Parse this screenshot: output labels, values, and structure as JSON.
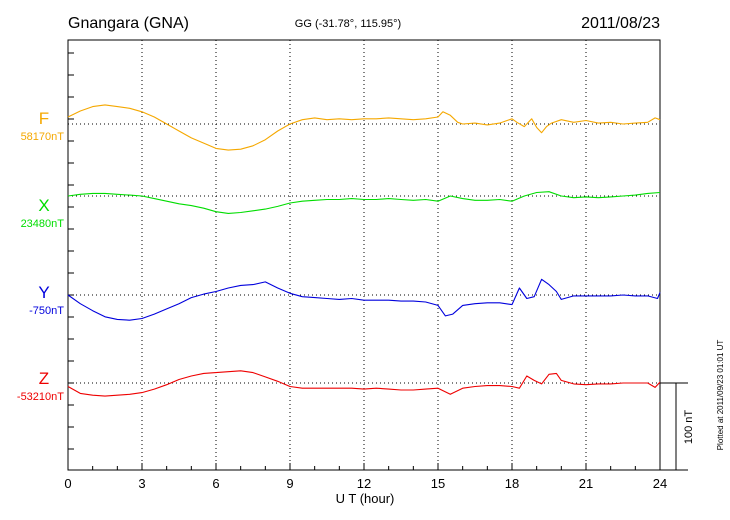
{
  "header": {
    "station": "Gnangara (GNA)",
    "coords": "GG (-31.78°, 115.95°)",
    "date": "2011/08/23"
  },
  "side_note": "Plotted at 2011/09/23 01:01 UT",
  "scale_label": "100 nT",
  "chart_data": {
    "type": "line",
    "xlabel": "U T (hour)",
    "xlim": [
      0,
      24
    ],
    "xticks": [
      "0",
      "3",
      "6",
      "9",
      "12",
      "15",
      "18",
      "21",
      "24"
    ],
    "scale_nT": 100,
    "series": [
      {
        "name": "F",
        "baseline_label": "58170nT",
        "color": "#f5a800",
        "x": [
          0,
          0.5,
          1,
          1.5,
          2,
          2.5,
          3,
          3.5,
          4,
          4.5,
          5,
          5.5,
          6,
          6.5,
          7,
          7.5,
          8,
          8.5,
          9,
          9.5,
          10,
          10.5,
          11,
          11.5,
          12,
          12.5,
          13,
          13.5,
          14,
          14.5,
          15,
          15.2,
          15.5,
          15.8,
          16,
          16.5,
          17,
          17.5,
          18,
          18.2,
          18.5,
          18.8,
          19,
          19.2,
          19.4,
          19.6,
          20,
          20.5,
          21,
          21.5,
          22,
          22.5,
          23,
          23.5,
          23.8,
          24
        ],
        "values": [
          8,
          15,
          20,
          22,
          20,
          18,
          14,
          8,
          0,
          -8,
          -16,
          -22,
          -28,
          -30,
          -29,
          -25,
          -18,
          -8,
          0,
          5,
          7,
          5,
          6,
          5,
          6,
          6,
          7,
          6,
          5,
          6,
          8,
          14,
          10,
          2,
          0,
          1,
          -1,
          1,
          6,
          2,
          -3,
          6,
          -4,
          -10,
          -3,
          1,
          5,
          2,
          4,
          1,
          2,
          0,
          1,
          2,
          7,
          5
        ]
      },
      {
        "name": "X",
        "baseline_label": "23480nT",
        "color": "#00dd00",
        "x": [
          0,
          0.5,
          1,
          1.5,
          2,
          2.5,
          3,
          3.5,
          4,
          4.5,
          5,
          5.5,
          6,
          6.5,
          7,
          7.5,
          8,
          8.5,
          9,
          9.5,
          10,
          10.5,
          11,
          11.5,
          12,
          12.5,
          13,
          13.5,
          14,
          14.5,
          15,
          15.5,
          16,
          16.5,
          17,
          17.5,
          18,
          18.5,
          19,
          19.5,
          20,
          20.5,
          21,
          21.5,
          22,
          22.5,
          23,
          23.5,
          24
        ],
        "values": [
          0,
          2,
          3,
          3,
          2,
          1,
          0,
          -3,
          -6,
          -9,
          -11,
          -14,
          -18,
          -20,
          -19,
          -17,
          -15,
          -12,
          -8,
          -6,
          -5,
          -4,
          -4,
          -3,
          -4,
          -4,
          -3,
          -4,
          -5,
          -4,
          -6,
          0,
          -3,
          -5,
          -5,
          -4,
          -6,
          0,
          4,
          5,
          0,
          -2,
          -1,
          -2,
          -1,
          0,
          1,
          3,
          4
        ]
      },
      {
        "name": "Y",
        "baseline_label": "-750nT",
        "color": "#0000dd",
        "x": [
          0,
          0.5,
          1,
          1.5,
          2,
          2.5,
          3,
          3.5,
          4,
          4.5,
          5,
          5.5,
          6,
          6.5,
          7,
          7.5,
          8,
          8.5,
          9,
          9.5,
          10,
          10.5,
          11,
          11.5,
          12,
          12.5,
          13,
          13.5,
          14,
          14.5,
          15,
          15.3,
          15.6,
          16,
          16.5,
          17,
          17.5,
          18,
          18.3,
          18.6,
          18.9,
          19.2,
          19.5,
          19.8,
          20,
          20.5,
          21,
          21.5,
          22,
          22.5,
          23,
          23.5,
          23.9,
          24
        ],
        "values": [
          0,
          -10,
          -18,
          -25,
          -28,
          -29,
          -27,
          -22,
          -16,
          -10,
          -3,
          1,
          4,
          8,
          11,
          12,
          15,
          8,
          2,
          -2,
          -3,
          -4,
          -5,
          -4,
          -6,
          -6,
          -6,
          -7,
          -7,
          -8,
          -12,
          -24,
          -22,
          -12,
          -10,
          -9,
          -9,
          -11,
          8,
          -4,
          -2,
          18,
          12,
          4,
          -5,
          -1,
          -1,
          -1,
          -1,
          0,
          -1,
          -1,
          -4,
          3
        ]
      },
      {
        "name": "Z",
        "baseline_label": "-53210nT",
        "color": "#ee0000",
        "x": [
          0,
          0.5,
          1,
          1.5,
          2,
          2.5,
          3,
          3.5,
          4,
          4.5,
          5,
          5.5,
          6,
          6.5,
          7,
          7.5,
          8,
          8.5,
          9,
          9.5,
          10,
          10.5,
          11,
          11.5,
          12,
          12.5,
          13,
          13.5,
          14,
          14.5,
          15,
          15.5,
          16,
          16.5,
          17,
          17.5,
          18,
          18.3,
          18.6,
          18.9,
          19.2,
          19.5,
          19.8,
          20,
          20.5,
          21,
          21.5,
          22,
          22.5,
          23,
          23.5,
          23.8,
          24
        ],
        "values": [
          -4,
          -12,
          -14,
          -15,
          -14,
          -13,
          -11,
          -7,
          -2,
          4,
          8,
          11,
          12,
          13,
          14,
          12,
          7,
          2,
          -4,
          -6,
          -6,
          -6,
          -6,
          -6,
          -7,
          -6,
          -7,
          -8,
          -8,
          -7,
          -6,
          -13,
          -6,
          -4,
          -3,
          -3,
          -4,
          -6,
          8,
          3,
          -1,
          10,
          11,
          3,
          -1,
          -2,
          -1,
          -1,
          0,
          0,
          0,
          -5,
          1
        ]
      }
    ]
  }
}
